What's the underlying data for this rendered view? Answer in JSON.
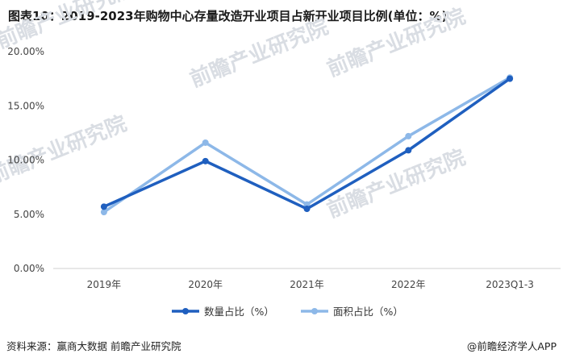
{
  "title": "图表10：2019-2023年购物中心存量改造开业项目占新开业项目比例(单位：%)",
  "source": "资料来源：赢商大数据 前瞻产业研究院",
  "brand": "@前瞻经济学人APP",
  "watermark": "前瞻产业研究院",
  "chart_data": {
    "type": "line",
    "categories": [
      "2019年",
      "2020年",
      "2021年",
      "2022年",
      "2023Q1-3"
    ],
    "ylim": [
      0,
      20
    ],
    "yticks": [
      0,
      5,
      10,
      15,
      20
    ],
    "ytick_labels": [
      "0.00%",
      "5.00%",
      "10.00%",
      "15.00%",
      "20.00%"
    ],
    "grid": false,
    "legend_position": "bottom",
    "series": [
      {
        "name": "数量占比（%）",
        "values": [
          5.7,
          9.9,
          5.5,
          10.9,
          17.5
        ],
        "color": "#1f5fbf"
      },
      {
        "name": "面积占比（%）",
        "values": [
          5.2,
          11.6,
          5.9,
          12.2,
          17.6
        ],
        "color": "#8db8e8"
      }
    ]
  }
}
